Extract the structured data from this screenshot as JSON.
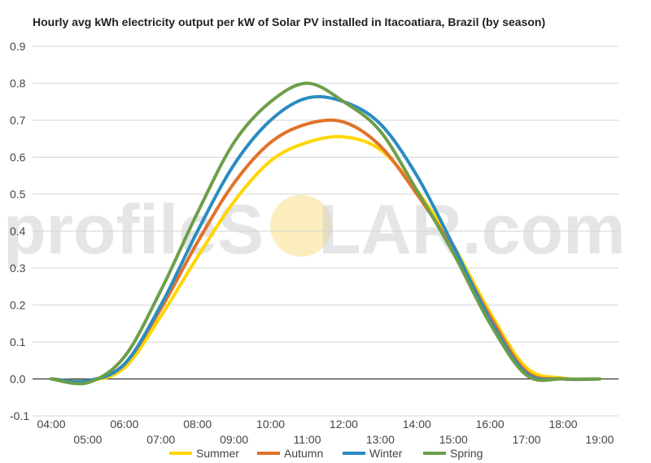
{
  "watermark": {
    "left": "profileS",
    "sun_letter": "O",
    "right": "LAR.com"
  },
  "chart_data": {
    "type": "line",
    "title": "Hourly avg kWh electricity output per kW of Solar PV installed in Itacoatiara, Brazil (by season)",
    "xlabel": "",
    "ylabel": "",
    "x": [
      "04:00",
      "05:00",
      "06:00",
      "07:00",
      "08:00",
      "09:00",
      "10:00",
      "11:00",
      "12:00",
      "13:00",
      "14:00",
      "15:00",
      "16:00",
      "17:00",
      "18:00",
      "19:00"
    ],
    "ylim": [
      -0.1,
      0.9
    ],
    "yticks": [
      "-0.1",
      "0.0",
      "0.1",
      "0.2",
      "0.3",
      "0.4",
      "0.5",
      "0.6",
      "0.7",
      "0.8",
      "0.9"
    ],
    "grid": true,
    "legend_position": "bottom",
    "series": [
      {
        "name": "Summer",
        "color": "#FFD600",
        "values": [
          0.0,
          -0.005,
          0.03,
          0.17,
          0.33,
          0.48,
          0.59,
          0.64,
          0.655,
          0.62,
          0.51,
          0.36,
          0.18,
          0.03,
          0.002,
          0.0
        ]
      },
      {
        "name": "Autumn",
        "color": "#E2722B",
        "values": [
          0.0,
          -0.005,
          0.04,
          0.19,
          0.37,
          0.53,
          0.64,
          0.69,
          0.695,
          0.63,
          0.5,
          0.35,
          0.17,
          0.02,
          0.0,
          0.0
        ]
      },
      {
        "name": "Winter",
        "color": "#2A8CC0",
        "values": [
          0.0,
          -0.005,
          0.04,
          0.2,
          0.4,
          0.58,
          0.7,
          0.76,
          0.75,
          0.69,
          0.55,
          0.36,
          0.16,
          0.015,
          0.0,
          0.0
        ]
      },
      {
        "name": "Spring",
        "color": "#6E9E4A",
        "values": [
          0.0,
          -0.01,
          0.06,
          0.24,
          0.45,
          0.64,
          0.75,
          0.8,
          0.75,
          0.67,
          0.51,
          0.34,
          0.15,
          0.01,
          0.0,
          0.0
        ]
      }
    ]
  }
}
